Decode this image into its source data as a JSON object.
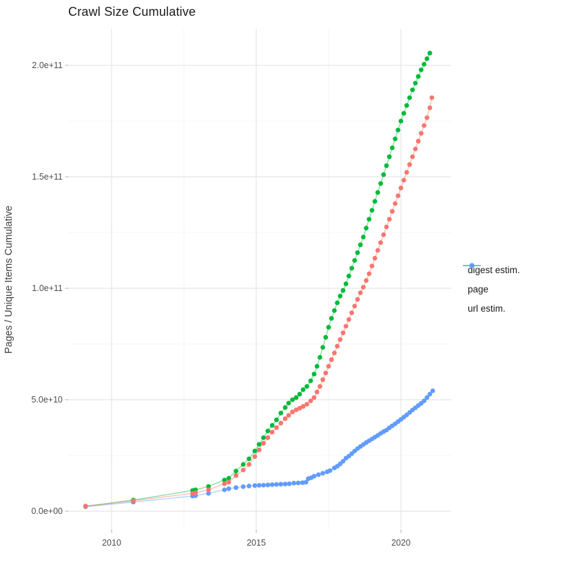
{
  "chart": {
    "title": "Crawl Size Cumulative",
    "y_axis_title": "Pages / Unique Items Cumulative"
  },
  "legend": {
    "items": [
      {
        "label": "digest estim.",
        "color": "#F8766D"
      },
      {
        "label": "page",
        "color": "#00BA38"
      },
      {
        "label": "url estim.",
        "color": "#619CFF"
      }
    ]
  },
  "chart_data": {
    "type": "scatter",
    "title": "Crawl Size Cumulative",
    "xlabel": "",
    "ylabel": "Pages / Unique Items Cumulative",
    "x_unit": "year",
    "y_unit": "items (values given in billions, 1e9)",
    "xlim": [
      2008.5,
      2021.7
    ],
    "ylim_e9": [
      -10,
      216
    ],
    "grid": true,
    "legend_position": "right",
    "x_ticks": [
      {
        "value": 2010,
        "label": "2010"
      },
      {
        "value": 2015,
        "label": "2015"
      },
      {
        "value": 2020,
        "label": "2020"
      }
    ],
    "y_ticks": [
      {
        "value_e9": 0,
        "label": "0.0e+00"
      },
      {
        "value_e9": 50,
        "label": "5.0e+10"
      },
      {
        "value_e9": 100,
        "label": "1.0e+11"
      },
      {
        "value_e9": 150,
        "label": "1.5e+11"
      },
      {
        "value_e9": 200,
        "label": "2.0e+11"
      }
    ],
    "x_minor_gridlines": [
      2012.5,
      2017.5
    ],
    "y_minor_gridlines_e9": [
      25,
      75,
      125,
      175
    ],
    "draw_order": [
      "page",
      "url estim.",
      "digest estim."
    ],
    "series": [
      {
        "name": "digest estim.",
        "color": "#F8766D",
        "points_year_e9": [
          [
            2009.1,
            2.3
          ],
          [
            2010.75,
            4.7
          ],
          [
            2012.8,
            8.0
          ],
          [
            2012.9,
            8.3
          ],
          [
            2013.35,
            9.6
          ],
          [
            2013.9,
            12.3
          ],
          [
            2014.05,
            13.0
          ],
          [
            2014.3,
            16.0
          ],
          [
            2014.55,
            18.5
          ],
          [
            2014.75,
            21.0
          ],
          [
            2014.95,
            24.5
          ],
          [
            2015.1,
            27.5
          ],
          [
            2015.25,
            30.5
          ],
          [
            2015.4,
            33.0
          ],
          [
            2015.55,
            35.5
          ],
          [
            2015.7,
            37.5
          ],
          [
            2015.85,
            39.5
          ],
          [
            2016.0,
            41.5
          ],
          [
            2016.12,
            43.0
          ],
          [
            2016.25,
            44.5
          ],
          [
            2016.38,
            45.5
          ],
          [
            2016.5,
            46.2
          ],
          [
            2016.62,
            47.0
          ],
          [
            2016.75,
            48.0
          ],
          [
            2016.88,
            49.5
          ],
          [
            2017.0,
            51.0
          ],
          [
            2017.1,
            53.5
          ],
          [
            2017.2,
            56.0
          ],
          [
            2017.3,
            59.0
          ],
          [
            2017.4,
            62.0
          ],
          [
            2017.5,
            65.0
          ],
          [
            2017.6,
            68.0
          ],
          [
            2017.7,
            71.0
          ],
          [
            2017.8,
            74.0
          ],
          [
            2017.9,
            77.0
          ],
          [
            2018.0,
            80.0
          ],
          [
            2018.1,
            83.0
          ],
          [
            2018.2,
            86.0
          ],
          [
            2018.3,
            89.0
          ],
          [
            2018.4,
            92.0
          ],
          [
            2018.5,
            95.0
          ],
          [
            2018.6,
            98.0
          ],
          [
            2018.7,
            100.5
          ],
          [
            2018.8,
            103.5
          ],
          [
            2018.9,
            106.5
          ],
          [
            2019.0,
            110.0
          ],
          [
            2019.1,
            113.5
          ],
          [
            2019.2,
            117.0
          ],
          [
            2019.3,
            120.5
          ],
          [
            2019.4,
            124.0
          ],
          [
            2019.5,
            127.5
          ],
          [
            2019.6,
            131.0
          ],
          [
            2019.7,
            134.5
          ],
          [
            2019.8,
            138.0
          ],
          [
            2019.9,
            141.5
          ],
          [
            2020.0,
            145.0
          ],
          [
            2020.1,
            148.5
          ],
          [
            2020.2,
            152.0
          ],
          [
            2020.3,
            155.5
          ],
          [
            2020.4,
            159.0
          ],
          [
            2020.5,
            162.5
          ],
          [
            2020.6,
            166.0
          ],
          [
            2020.7,
            169.5
          ],
          [
            2020.8,
            173.0
          ],
          [
            2020.9,
            176.5
          ],
          [
            2021.0,
            181.0
          ],
          [
            2021.07,
            185.5
          ]
        ]
      },
      {
        "name": "page",
        "color": "#00BA38",
        "points_year_e9": [
          [
            2009.1,
            2.2
          ],
          [
            2010.75,
            5.0
          ],
          [
            2012.8,
            9.3
          ],
          [
            2012.9,
            9.6
          ],
          [
            2013.35,
            11.1
          ],
          [
            2013.9,
            14.0
          ],
          [
            2014.05,
            14.8
          ],
          [
            2014.3,
            18.0
          ],
          [
            2014.55,
            21.0
          ],
          [
            2014.75,
            23.5
          ],
          [
            2014.95,
            27.0
          ],
          [
            2015.1,
            30.0
          ],
          [
            2015.25,
            33.0
          ],
          [
            2015.4,
            36.0
          ],
          [
            2015.55,
            38.5
          ],
          [
            2015.7,
            41.0
          ],
          [
            2015.85,
            44.0
          ],
          [
            2016.0,
            46.5
          ],
          [
            2016.12,
            48.5
          ],
          [
            2016.25,
            50.0
          ],
          [
            2016.38,
            51.0
          ],
          [
            2016.5,
            52.5
          ],
          [
            2016.62,
            54.5
          ],
          [
            2016.75,
            56.0
          ],
          [
            2016.88,
            58.5
          ],
          [
            2017.0,
            61.5
          ],
          [
            2017.1,
            65.0
          ],
          [
            2017.2,
            69.0
          ],
          [
            2017.3,
            73.5
          ],
          [
            2017.4,
            78.0
          ],
          [
            2017.5,
            82.5
          ],
          [
            2017.6,
            86.5
          ],
          [
            2017.7,
            90.0
          ],
          [
            2017.8,
            93.5
          ],
          [
            2017.9,
            96.5
          ],
          [
            2018.0,
            99.0
          ],
          [
            2018.1,
            102.0
          ],
          [
            2018.2,
            105.5
          ],
          [
            2018.3,
            109.0
          ],
          [
            2018.4,
            112.5
          ],
          [
            2018.5,
            116.0
          ],
          [
            2018.6,
            119.5
          ],
          [
            2018.7,
            123.0
          ],
          [
            2018.8,
            127.0
          ],
          [
            2018.9,
            131.0
          ],
          [
            2019.0,
            135.0
          ],
          [
            2019.1,
            139.0
          ],
          [
            2019.2,
            143.0
          ],
          [
            2019.3,
            147.0
          ],
          [
            2019.4,
            151.0
          ],
          [
            2019.5,
            155.0
          ],
          [
            2019.6,
            159.0
          ],
          [
            2019.7,
            163.0
          ],
          [
            2019.8,
            167.0
          ],
          [
            2019.9,
            171.0
          ],
          [
            2020.0,
            175.0
          ],
          [
            2020.1,
            178.5
          ],
          [
            2020.2,
            182.0
          ],
          [
            2020.3,
            185.5
          ],
          [
            2020.4,
            189.0
          ],
          [
            2020.5,
            192.0
          ],
          [
            2020.6,
            195.0
          ],
          [
            2020.7,
            198.0
          ],
          [
            2020.8,
            200.5
          ],
          [
            2020.9,
            203.0
          ],
          [
            2021.0,
            205.5
          ]
        ]
      },
      {
        "name": "url estim.",
        "color": "#619CFF",
        "points_year_e9": [
          [
            2009.1,
            2.0
          ],
          [
            2010.75,
            4.1
          ],
          [
            2012.8,
            6.8
          ],
          [
            2012.9,
            7.0
          ],
          [
            2013.35,
            8.0
          ],
          [
            2013.9,
            9.6
          ],
          [
            2014.05,
            10.1
          ],
          [
            2014.3,
            10.6
          ],
          [
            2014.55,
            11.0
          ],
          [
            2014.75,
            11.3
          ],
          [
            2014.95,
            11.5
          ],
          [
            2015.1,
            11.6
          ],
          [
            2015.25,
            11.7
          ],
          [
            2015.4,
            11.8
          ],
          [
            2015.55,
            11.9
          ],
          [
            2015.7,
            12.0
          ],
          [
            2015.85,
            12.1
          ],
          [
            2016.0,
            12.2
          ],
          [
            2016.14,
            12.3
          ],
          [
            2016.3,
            12.6
          ],
          [
            2016.45,
            12.7
          ],
          [
            2016.6,
            12.8
          ],
          [
            2016.72,
            13.0
          ],
          [
            2016.8,
            14.6
          ],
          [
            2016.9,
            15.0
          ],
          [
            2017.0,
            15.7
          ],
          [
            2017.15,
            16.4
          ],
          [
            2017.3,
            17.0
          ],
          [
            2017.45,
            17.7
          ],
          [
            2017.55,
            18.2
          ],
          [
            2017.7,
            19.4
          ],
          [
            2017.8,
            20.2
          ],
          [
            2017.9,
            21.2
          ],
          [
            2018.0,
            22.4
          ],
          [
            2018.1,
            23.8
          ],
          [
            2018.2,
            24.7
          ],
          [
            2018.3,
            25.8
          ],
          [
            2018.4,
            27.0
          ],
          [
            2018.5,
            28.1
          ],
          [
            2018.6,
            29.0
          ],
          [
            2018.7,
            29.9
          ],
          [
            2018.8,
            30.8
          ],
          [
            2018.9,
            31.6
          ],
          [
            2019.0,
            32.4
          ],
          [
            2019.1,
            33.2
          ],
          [
            2019.2,
            34.0
          ],
          [
            2019.3,
            34.9
          ],
          [
            2019.4,
            35.7
          ],
          [
            2019.5,
            36.4
          ],
          [
            2019.6,
            37.4
          ],
          [
            2019.7,
            38.3
          ],
          [
            2019.8,
            39.2
          ],
          [
            2019.9,
            40.2
          ],
          [
            2020.0,
            41.2
          ],
          [
            2020.1,
            42.2
          ],
          [
            2020.2,
            43.2
          ],
          [
            2020.3,
            44.3
          ],
          [
            2020.4,
            45.4
          ],
          [
            2020.5,
            46.4
          ],
          [
            2020.6,
            47.4
          ],
          [
            2020.7,
            48.4
          ],
          [
            2020.8,
            49.5
          ],
          [
            2020.9,
            51.0
          ],
          [
            2021.0,
            52.5
          ],
          [
            2021.1,
            54.0
          ]
        ]
      }
    ]
  }
}
